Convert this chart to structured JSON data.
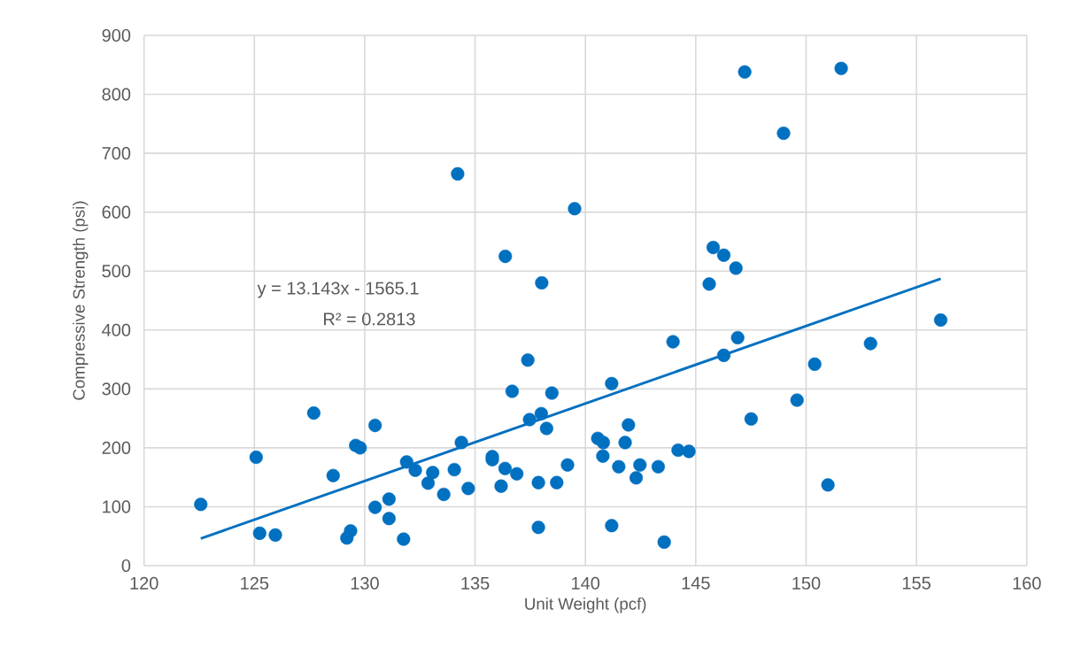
{
  "chart_data": {
    "type": "scatter",
    "xlabel": "Unit Weight (pcf)",
    "ylabel": "Compressive Strength (psi)",
    "xlim": [
      120,
      160
    ],
    "xticks": [
      120,
      125,
      130,
      135,
      140,
      145,
      150,
      155,
      160
    ],
    "ylim": [
      0,
      900
    ],
    "yticks": [
      0,
      100,
      200,
      300,
      400,
      500,
      600,
      700,
      800,
      900
    ],
    "grid": true,
    "marker": "circle",
    "annotations": [
      "y = 13.143x - 1565.1",
      "R² = 0.2813"
    ],
    "series": [
      {
        "color": "#0070c0",
        "x": [
          122.57,
          125.08,
          125.24,
          125.95,
          127.69,
          128.57,
          129.19,
          129.36,
          129.59,
          129.79,
          130.47,
          130.47,
          131.1,
          131.1,
          131.76,
          131.9,
          132.29,
          132.87,
          133.08,
          133.58,
          134.06,
          134.38,
          134.69,
          134.21,
          135.78,
          135.78,
          136.18,
          136.36,
          136.37,
          136.68,
          136.89,
          137.39,
          137.47,
          137.87,
          137.87,
          138.0,
          138.02,
          138.24,
          138.48,
          138.7,
          139.19,
          139.51,
          140.56,
          140.79,
          140.81,
          141.19,
          141.19,
          141.51,
          141.8,
          141.95,
          142.3,
          142.47,
          143.3,
          143.57,
          143.97,
          144.2,
          144.69,
          145.61,
          145.79,
          146.27,
          146.27,
          146.82,
          146.9,
          147.22,
          147.51,
          148.98,
          149.59,
          150.39,
          150.99,
          151.59,
          152.92,
          156.1
        ],
        "values": [
          104,
          184,
          55,
          52,
          259,
          153,
          47,
          59,
          204,
          200,
          238,
          99,
          113,
          80,
          45,
          176,
          162,
          140,
          158,
          121,
          163,
          209,
          131,
          665,
          185,
          180,
          135,
          165,
          525,
          296,
          156,
          349,
          248,
          141,
          65,
          258,
          480,
          233,
          293,
          141,
          171,
          606,
          216,
          186,
          209,
          309,
          68,
          168,
          209,
          239,
          149,
          171,
          168,
          40,
          380,
          196,
          194,
          478,
          540,
          527,
          357,
          505,
          387,
          838,
          249,
          734,
          281,
          342,
          137,
          844,
          377,
          417
        ]
      },
      {
        "type": "line",
        "marker": "none",
        "color": "#0070c0",
        "x": [
          122.57,
          156.1
        ],
        "values": [
          46,
          487
        ]
      }
    ]
  }
}
